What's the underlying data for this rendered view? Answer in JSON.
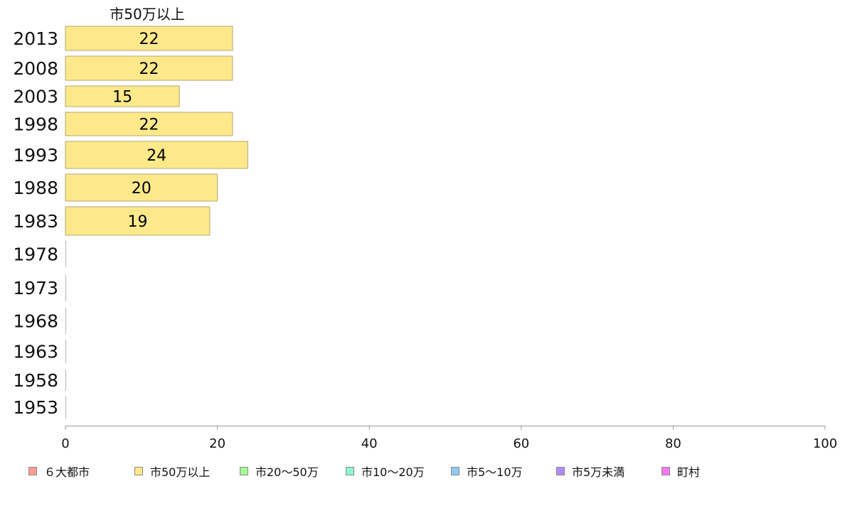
{
  "chart_data": {
    "type": "bar",
    "orientation": "horizontal",
    "title": "市50万以上",
    "categories": [
      "2013",
      "2008",
      "2003",
      "1998",
      "1993",
      "1988",
      "1983",
      "1978",
      "1973",
      "1968",
      "1963",
      "1958",
      "1953"
    ],
    "series": [
      {
        "name": "市50万以上",
        "color": "#fee98a",
        "values": [
          22,
          22,
          15,
          22,
          24,
          20,
          19,
          0,
          0,
          0,
          0,
          0,
          0
        ],
        "labels": [
          "22",
          "22",
          "15",
          "22",
          "24",
          "20",
          "19",
          "",
          "",
          "",
          "",
          "",
          ""
        ]
      }
    ],
    "xlim": [
      0,
      100
    ],
    "xticks": [
      "0",
      "20",
      "40",
      "60",
      "80",
      "100"
    ],
    "grid": false,
    "legend_position": "bottom",
    "legend": [
      {
        "label": "６大都市",
        "color": "#fa9b94"
      },
      {
        "label": "市50万以上",
        "color": "#fee98a"
      },
      {
        "label": "市20〜50万",
        "color": "#a7fb94"
      },
      {
        "label": "市10〜20万",
        "color": "#8cf7d0"
      },
      {
        "label": "市5〜10万",
        "color": "#8fcaf4"
      },
      {
        "label": "市5万未満",
        "color": "#ae8cf2"
      },
      {
        "label": "町村",
        "color": "#f777ee"
      }
    ]
  }
}
